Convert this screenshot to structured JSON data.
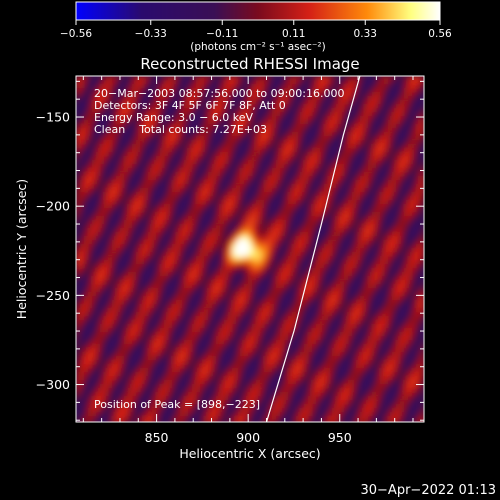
{
  "chart_data": {
    "type": "heatmap",
    "title": "Reconstructed RHESSI Image",
    "xlabel": "Heliocentric X (arcsec)",
    "ylabel": "Heliocentric Y (arcsec)",
    "xlim": [
      806,
      996
    ],
    "ylim": [
      -321,
      -127
    ],
    "xticks": [
      850,
      900,
      950
    ],
    "xtick_labels": [
      "850",
      "900",
      "950"
    ],
    "yticks": [
      -150,
      -200,
      -250,
      -300
    ],
    "ytick_labels": [
      "−150",
      "−200",
      "−250",
      "−300"
    ],
    "colorbar": {
      "range": [
        -0.56,
        0.56
      ],
      "ticks": [
        -0.56,
        -0.33,
        -0.11,
        0.11,
        0.33,
        0.56
      ],
      "tick_labels": [
        "−0.56",
        "−0.33",
        "−0.11",
        "0.11",
        "0.33",
        "0.56"
      ],
      "unit_label": "(photons cm⁻² s⁻¹ asec⁻²)",
      "colors": [
        "#0000ff",
        "#2a0a6e",
        "#3a0f55",
        "#7a0a1e",
        "#d42016",
        "#ff8a0a",
        "#ffff80",
        "#ffffff"
      ]
    },
    "peak": {
      "x": 898,
      "y": -223,
      "value": 0.56
    },
    "info_lines": [
      "20−Mar−2003 08:57:56.000 to 09:00:16.000",
      "Detectors: 3F 4F 5F 6F 7F 8F, Att 0",
      "Energy Range: 3.0 − 6.0 keV",
      "Clean    Total counts: 7.27E+03"
    ],
    "peak_label": "Position of Peak = [898,−223]",
    "limb_curve": [
      [
        910,
        -321
      ],
      [
        925,
        -270
      ],
      [
        940,
        -210
      ],
      [
        952,
        -160
      ],
      [
        961,
        -127
      ]
    ],
    "grid": false,
    "legend": "none"
  },
  "footer": {
    "timestamp": "30−Apr−2022 01:13"
  }
}
